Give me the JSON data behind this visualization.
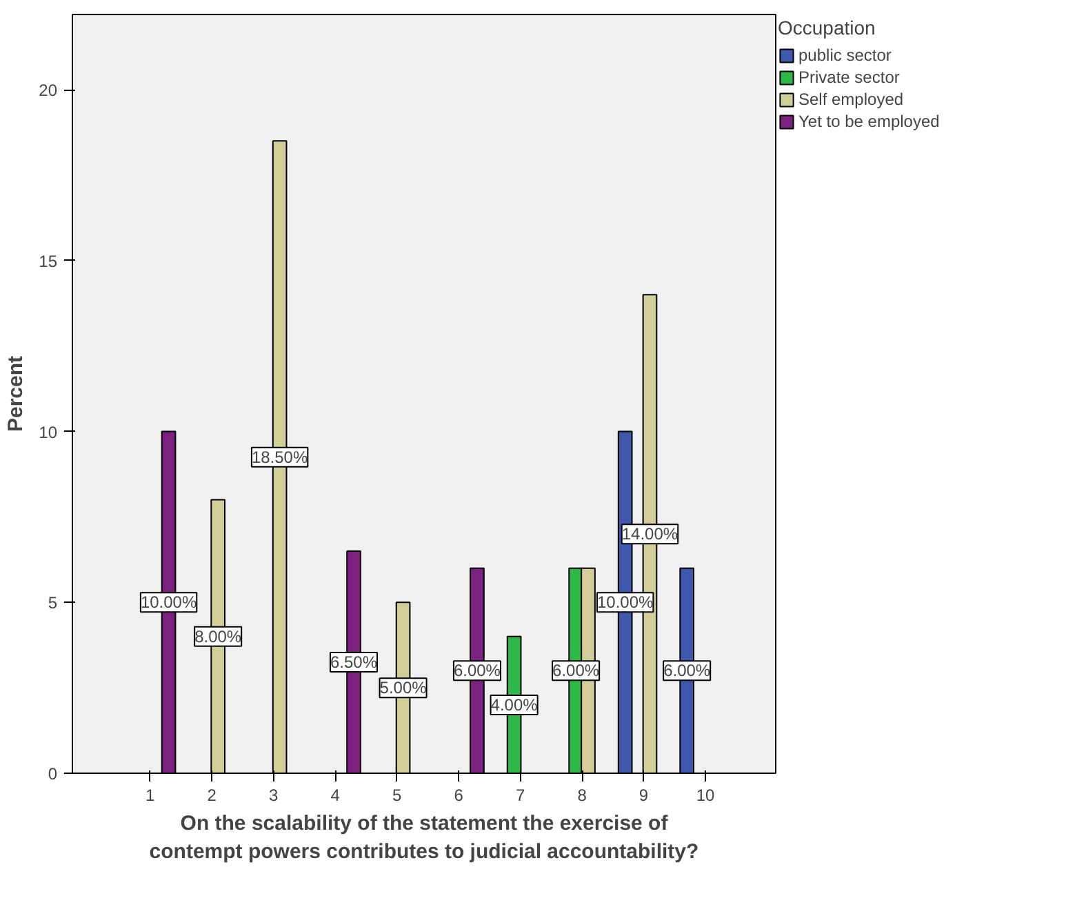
{
  "chart_data": {
    "type": "bar",
    "xlabel": "On the scalability of the statement the exercise of contempt powers contributes to judicial accountability?",
    "ylabel": "Percent",
    "legend_title": "Occupation",
    "legend": "right",
    "grid": false,
    "categories": [
      "1",
      "2",
      "3",
      "4",
      "5",
      "6",
      "7",
      "8",
      "9",
      "10"
    ],
    "ylim": [
      0,
      22.2
    ],
    "yticks": [
      0,
      5,
      10,
      15,
      20
    ],
    "series": [
      {
        "name": "public sector",
        "color": "#3e58ac",
        "values": [
          null,
          null,
          null,
          null,
          null,
          null,
          null,
          null,
          10,
          6
        ],
        "value_labels": [
          null,
          null,
          null,
          null,
          null,
          null,
          null,
          null,
          "10.00%",
          "6.00%"
        ]
      },
      {
        "name": "Private sector",
        "color": "#2eb848",
        "values": [
          null,
          null,
          null,
          null,
          null,
          null,
          4,
          6,
          null,
          null
        ],
        "value_labels": [
          null,
          null,
          null,
          null,
          null,
          null,
          "4.00%",
          "6.00%",
          null,
          null
        ]
      },
      {
        "name": "Self employed",
        "color": "#d3ce97",
        "values": [
          null,
          8,
          18.5,
          null,
          5,
          null,
          null,
          6,
          14,
          null
        ],
        "value_labels": [
          null,
          "8.00%",
          "18.50%",
          null,
          "5.00%",
          null,
          null,
          null,
          "14.00%",
          null
        ]
      },
      {
        "name": "Yet to be employed",
        "color": "#7b2281",
        "values": [
          10,
          null,
          null,
          6.5,
          null,
          6,
          null,
          null,
          null,
          null
        ],
        "value_labels": [
          "10.00%",
          null,
          null,
          "6.50%",
          null,
          "6.00%",
          null,
          null,
          null,
          null
        ]
      }
    ]
  }
}
